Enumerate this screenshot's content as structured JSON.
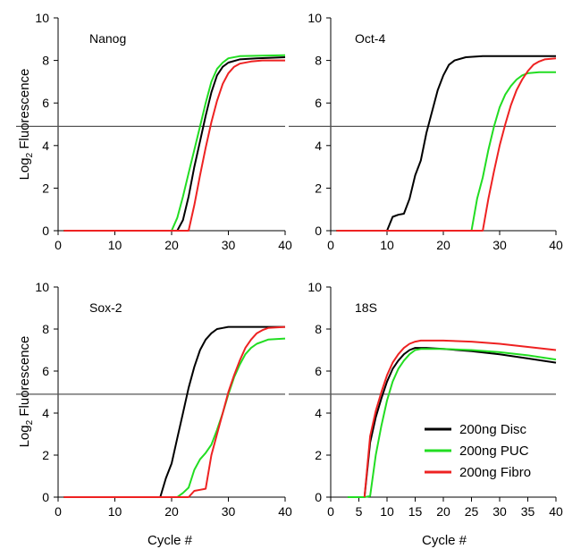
{
  "figure": {
    "ylabel": "Log",
    "ylabel_sub": "2",
    "ylabel_rest": " Fluorescence",
    "xlabel": "Cycle #"
  },
  "legend": {
    "placement": "bottom-right of 18S panel",
    "entries": [
      {
        "label": "200ng Disc",
        "color": "#000000"
      },
      {
        "label": "200ng PUC",
        "color": "#22dd22"
      },
      {
        "label": "200ng Fibro",
        "color": "#ee2222"
      }
    ]
  },
  "chart_data": [
    {
      "type": "line",
      "panel_label": "Nanog",
      "xlim": [
        0,
        40
      ],
      "ylim": [
        0,
        10
      ],
      "xticks": [
        0,
        10,
        20,
        30,
        40
      ],
      "yticks": [
        0,
        2,
        4,
        6,
        8,
        10
      ],
      "threshold": 4.9,
      "series": [
        {
          "name": "200ng Disc",
          "color": "#000000",
          "x": [
            1,
            21,
            22,
            23,
            24,
            25,
            26,
            27,
            28,
            29,
            30,
            32,
            35,
            40
          ],
          "y": [
            0,
            0,
            0.5,
            1.6,
            3.0,
            4.2,
            5.4,
            6.5,
            7.3,
            7.7,
            7.9,
            8.05,
            8.1,
            8.15
          ]
        },
        {
          "name": "200ng PUC",
          "color": "#22dd22",
          "x": [
            1,
            20,
            21,
            22,
            23,
            24,
            25,
            26,
            27,
            28,
            29,
            30,
            32,
            35,
            40
          ],
          "y": [
            0,
            0,
            0.6,
            1.6,
            2.7,
            3.8,
            4.9,
            6.0,
            7.0,
            7.6,
            7.9,
            8.1,
            8.2,
            8.22,
            8.25
          ]
        },
        {
          "name": "200ng Fibro",
          "color": "#ee2222",
          "x": [
            1,
            23,
            24,
            25,
            26,
            27,
            28,
            29,
            30,
            31,
            32,
            34,
            36,
            40
          ],
          "y": [
            0,
            0,
            1.2,
            2.6,
            3.9,
            5.1,
            6.1,
            6.9,
            7.4,
            7.7,
            7.85,
            7.95,
            8.0,
            8.0
          ]
        }
      ]
    },
    {
      "type": "line",
      "panel_label": "Oct-4",
      "xlim": [
        0,
        40
      ],
      "ylim": [
        0,
        10
      ],
      "xticks": [
        0,
        10,
        20,
        30,
        40
      ],
      "yticks": [
        0,
        2,
        4,
        6,
        8,
        10
      ],
      "threshold": 4.9,
      "series": [
        {
          "name": "200ng Disc",
          "color": "#000000",
          "x": [
            1,
            10,
            11,
            12,
            13,
            14,
            15,
            16,
            17,
            18,
            19,
            20,
            21,
            22,
            24,
            27,
            30,
            40
          ],
          "y": [
            0,
            0,
            0.65,
            0.75,
            0.8,
            1.5,
            2.6,
            3.3,
            4.6,
            5.6,
            6.6,
            7.3,
            7.8,
            8.0,
            8.15,
            8.2,
            8.2,
            8.2
          ]
        },
        {
          "name": "200ng PUC",
          "color": "#22dd22",
          "x": [
            1,
            25,
            26,
            27,
            28,
            29,
            30,
            31,
            32,
            33,
            34,
            35,
            37,
            40
          ],
          "y": [
            0,
            0,
            1.5,
            2.5,
            3.8,
            4.9,
            5.8,
            6.4,
            6.8,
            7.1,
            7.3,
            7.4,
            7.45,
            7.45
          ]
        },
        {
          "name": "200ng Fibro",
          "color": "#ee2222",
          "x": [
            1,
            27,
            28,
            29,
            30,
            31,
            32,
            33,
            34,
            35,
            36,
            37,
            38,
            40
          ],
          "y": [
            0,
            0,
            1.5,
            2.8,
            4.0,
            5.0,
            5.9,
            6.6,
            7.1,
            7.5,
            7.8,
            7.95,
            8.05,
            8.1
          ]
        }
      ]
    },
    {
      "type": "line",
      "panel_label": "Sox-2",
      "xlim": [
        0,
        40
      ],
      "ylim": [
        0,
        10
      ],
      "xticks": [
        0,
        10,
        20,
        30,
        40
      ],
      "yticks": [
        0,
        2,
        4,
        6,
        8,
        10
      ],
      "threshold": 4.9,
      "series": [
        {
          "name": "200ng Disc",
          "color": "#000000",
          "x": [
            1,
            18,
            19,
            20,
            21,
            22,
            23,
            24,
            25,
            26,
            27,
            28,
            29,
            30,
            32,
            35,
            40
          ],
          "y": [
            0,
            0,
            0.9,
            1.6,
            2.8,
            4.0,
            5.2,
            6.2,
            7.0,
            7.5,
            7.8,
            8.0,
            8.05,
            8.1,
            8.1,
            8.1,
            8.1
          ]
        },
        {
          "name": "200ng PUC",
          "color": "#22dd22",
          "x": [
            1,
            21,
            22,
            23,
            24,
            25,
            26,
            27,
            28,
            29,
            30,
            31,
            32,
            33,
            34,
            35,
            37,
            40
          ],
          "y": [
            0,
            0,
            0.2,
            0.45,
            1.3,
            1.8,
            2.1,
            2.5,
            3.2,
            4.0,
            4.9,
            5.7,
            6.3,
            6.8,
            7.1,
            7.3,
            7.5,
            7.55
          ]
        },
        {
          "name": "200ng Fibro",
          "color": "#ee2222",
          "x": [
            1,
            23,
            24,
            25,
            26,
            27,
            28,
            29,
            30,
            31,
            32,
            33,
            34,
            35,
            36,
            37,
            40
          ],
          "y": [
            0,
            0,
            0.3,
            0.35,
            0.4,
            2.0,
            3.0,
            4.0,
            5.0,
            5.8,
            6.5,
            7.1,
            7.5,
            7.8,
            7.95,
            8.05,
            8.1
          ]
        }
      ]
    },
    {
      "type": "line",
      "panel_label": "18S",
      "xlim": [
        0,
        40
      ],
      "ylim": [
        0,
        10
      ],
      "xticks": [
        0,
        5,
        10,
        15,
        20,
        25,
        30,
        35,
        40
      ],
      "yticks": [
        0,
        2,
        4,
        6,
        8,
        10
      ],
      "threshold": 4.9,
      "series": [
        {
          "name": "200ng Disc",
          "color": "#000000",
          "x": [
            6,
            7,
            8,
            9,
            10,
            11,
            12,
            13,
            14,
            15,
            16,
            17,
            20,
            25,
            30,
            35,
            40
          ],
          "y": [
            0,
            2.6,
            3.8,
            4.7,
            5.5,
            6.1,
            6.5,
            6.8,
            7.0,
            7.1,
            7.1,
            7.1,
            7.05,
            6.95,
            6.8,
            6.6,
            6.4
          ]
        },
        {
          "name": "200ng PUC",
          "color": "#22dd22",
          "x": [
            3,
            6,
            7,
            8,
            9,
            10,
            11,
            12,
            13,
            14,
            15,
            16,
            17,
            20,
            25,
            30,
            35,
            40
          ],
          "y": [
            0,
            0,
            0.05,
            2.0,
            3.4,
            4.6,
            5.5,
            6.1,
            6.5,
            6.8,
            7.0,
            7.05,
            7.05,
            7.05,
            7.0,
            6.9,
            6.75,
            6.55
          ]
        },
        {
          "name": "200ng Fibro",
          "color": "#ee2222",
          "x": [
            6,
            7,
            8,
            9,
            10,
            11,
            12,
            13,
            14,
            15,
            16,
            17,
            20,
            25,
            30,
            35,
            40
          ],
          "y": [
            0,
            2.9,
            4.1,
            5.0,
            5.8,
            6.4,
            6.8,
            7.1,
            7.3,
            7.4,
            7.45,
            7.45,
            7.45,
            7.4,
            7.3,
            7.15,
            7.0
          ]
        }
      ]
    }
  ]
}
